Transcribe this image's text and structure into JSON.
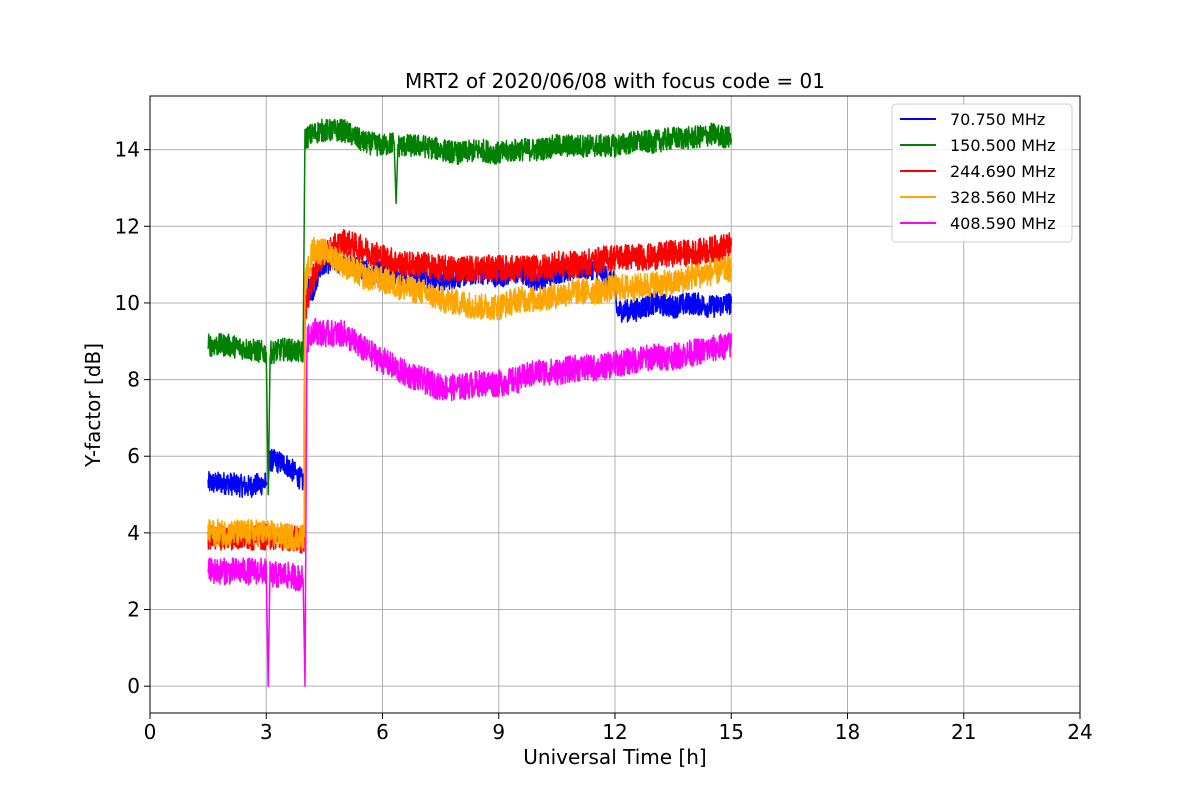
{
  "chart_data": {
    "type": "line",
    "title": "MRT2 of 2020/06/08 with focus code = 01",
    "xlabel": "Universal Time [h]",
    "ylabel": "Y-factor [dB]",
    "xlim": [
      0,
      24
    ],
    "ylim": [
      -0.7,
      15.4
    ],
    "xticks": [
      0,
      3,
      6,
      9,
      12,
      15,
      18,
      21,
      24
    ],
    "yticks": [
      0,
      2,
      4,
      6,
      8,
      10,
      12,
      14
    ],
    "grid": true,
    "legend_position": "top-right",
    "series": [
      {
        "name": " 70.750 MHz",
        "color": "#0000ff",
        "amp": 0.3,
        "points": [
          [
            1.5,
            5.3
          ],
          [
            2.0,
            5.3
          ],
          [
            2.5,
            5.2
          ],
          [
            3.0,
            5.3
          ],
          [
            3.05,
            5.3
          ],
          [
            3.1,
            5.9
          ],
          [
            3.5,
            5.8
          ],
          [
            3.8,
            5.5
          ],
          [
            3.98,
            5.3
          ],
          [
            4.0,
            10.5
          ],
          [
            4.2,
            10.3
          ],
          [
            4.4,
            11.0
          ],
          [
            4.8,
            11.1
          ],
          [
            5.2,
            11.0
          ],
          [
            5.6,
            10.8
          ],
          [
            6.0,
            10.8
          ],
          [
            6.5,
            10.6
          ],
          [
            7.0,
            10.7
          ],
          [
            7.5,
            10.6
          ],
          [
            8.0,
            10.7
          ],
          [
            8.5,
            10.8
          ],
          [
            9.0,
            10.7
          ],
          [
            9.5,
            10.8
          ],
          [
            10.0,
            10.6
          ],
          [
            10.5,
            10.8
          ],
          [
            11.0,
            10.9
          ],
          [
            11.5,
            10.9
          ],
          [
            12.0,
            10.5
          ],
          [
            12.05,
            9.8
          ],
          [
            12.5,
            9.8
          ],
          [
            13.0,
            10.0
          ],
          [
            13.5,
            9.9
          ],
          [
            14.0,
            10.0
          ],
          [
            14.5,
            9.9
          ],
          [
            15.0,
            10.0
          ]
        ]
      },
      {
        "name": "150.500 MHz",
        "color": "#008000",
        "amp": 0.3,
        "points": [
          [
            1.5,
            8.9
          ],
          [
            2.0,
            8.9
          ],
          [
            2.5,
            8.8
          ],
          [
            3.0,
            8.7
          ],
          [
            3.05,
            5.0
          ],
          [
            3.1,
            8.7
          ],
          [
            3.5,
            8.8
          ],
          [
            3.95,
            8.7
          ],
          [
            4.0,
            14.3
          ],
          [
            4.4,
            14.5
          ],
          [
            5.0,
            14.5
          ],
          [
            5.5,
            14.2
          ],
          [
            6.0,
            14.1
          ],
          [
            6.3,
            14.2
          ],
          [
            6.35,
            12.6
          ],
          [
            6.4,
            14.1
          ],
          [
            7.0,
            14.1
          ],
          [
            7.5,
            14.0
          ],
          [
            8.0,
            13.9
          ],
          [
            8.5,
            14.0
          ],
          [
            9.0,
            13.9
          ],
          [
            9.5,
            14.0
          ],
          [
            10.0,
            14.0
          ],
          [
            10.5,
            14.1
          ],
          [
            11.0,
            14.1
          ],
          [
            11.5,
            14.1
          ],
          [
            12.0,
            14.1
          ],
          [
            12.5,
            14.2
          ],
          [
            13.0,
            14.2
          ],
          [
            13.5,
            14.3
          ],
          [
            14.0,
            14.3
          ],
          [
            14.5,
            14.4
          ],
          [
            15.0,
            14.3
          ]
        ]
      },
      {
        "name": "244.690 MHz",
        "color": "#ff0000",
        "amp": 0.35,
        "points": [
          [
            1.5,
            3.9
          ],
          [
            2.0,
            3.9
          ],
          [
            2.5,
            3.9
          ],
          [
            3.0,
            3.9
          ],
          [
            3.5,
            3.9
          ],
          [
            3.98,
            3.8
          ],
          [
            4.0,
            9.8
          ],
          [
            4.2,
            10.7
          ],
          [
            4.5,
            11.3
          ],
          [
            5.0,
            11.6
          ],
          [
            5.5,
            11.4
          ],
          [
            6.0,
            11.2
          ],
          [
            6.5,
            11.0
          ],
          [
            7.0,
            11.0
          ],
          [
            7.5,
            10.9
          ],
          [
            8.0,
            10.9
          ],
          [
            8.5,
            10.9
          ],
          [
            9.0,
            10.9
          ],
          [
            9.5,
            10.9
          ],
          [
            10.0,
            10.9
          ],
          [
            10.5,
            11.0
          ],
          [
            11.0,
            11.0
          ],
          [
            11.5,
            11.1
          ],
          [
            12.0,
            11.2
          ],
          [
            12.5,
            11.2
          ],
          [
            13.0,
            11.2
          ],
          [
            13.5,
            11.3
          ],
          [
            14.0,
            11.3
          ],
          [
            14.5,
            11.4
          ],
          [
            15.0,
            11.5
          ]
        ]
      },
      {
        "name": "328.560 MHz",
        "color": "#ffa500",
        "amp": 0.35,
        "points": [
          [
            1.5,
            4.0
          ],
          [
            2.0,
            4.0
          ],
          [
            2.5,
            4.0
          ],
          [
            3.0,
            4.0
          ],
          [
            3.5,
            3.9
          ],
          [
            3.98,
            3.9
          ],
          [
            4.0,
            10.5
          ],
          [
            4.2,
            11.4
          ],
          [
            4.6,
            11.3
          ],
          [
            5.0,
            11.0
          ],
          [
            5.5,
            10.7
          ],
          [
            6.0,
            10.6
          ],
          [
            6.5,
            10.4
          ],
          [
            7.0,
            10.3
          ],
          [
            7.5,
            10.1
          ],
          [
            8.0,
            10.0
          ],
          [
            8.5,
            9.9
          ],
          [
            9.0,
            9.9
          ],
          [
            9.5,
            10.1
          ],
          [
            10.0,
            10.1
          ],
          [
            10.5,
            10.2
          ],
          [
            11.0,
            10.3
          ],
          [
            11.5,
            10.3
          ],
          [
            12.0,
            10.4
          ],
          [
            12.5,
            10.4
          ],
          [
            13.0,
            10.5
          ],
          [
            13.5,
            10.5
          ],
          [
            14.0,
            10.7
          ],
          [
            14.5,
            10.8
          ],
          [
            15.0,
            10.9
          ]
        ]
      },
      {
        "name": "408.590 MHz",
        "color": "#ff00ff",
        "amp": 0.35,
        "points": [
          [
            1.5,
            3.0
          ],
          [
            2.0,
            3.0
          ],
          [
            2.5,
            3.0
          ],
          [
            3.0,
            3.0
          ],
          [
            3.05,
            0.0
          ],
          [
            3.1,
            2.9
          ],
          [
            3.5,
            2.9
          ],
          [
            3.95,
            2.8
          ],
          [
            4.0,
            0.0
          ],
          [
            4.05,
            9.0
          ],
          [
            4.2,
            9.3
          ],
          [
            4.5,
            9.2
          ],
          [
            5.0,
            9.2
          ],
          [
            5.5,
            8.8
          ],
          [
            6.0,
            8.5
          ],
          [
            6.5,
            8.2
          ],
          [
            7.0,
            8.0
          ],
          [
            7.5,
            7.8
          ],
          [
            8.0,
            7.8
          ],
          [
            8.5,
            7.9
          ],
          [
            9.0,
            7.9
          ],
          [
            9.5,
            8.0
          ],
          [
            10.0,
            8.2
          ],
          [
            10.5,
            8.2
          ],
          [
            11.0,
            8.3
          ],
          [
            11.5,
            8.3
          ],
          [
            12.0,
            8.4
          ],
          [
            12.5,
            8.5
          ],
          [
            13.0,
            8.6
          ],
          [
            13.5,
            8.6
          ],
          [
            14.0,
            8.7
          ],
          [
            14.5,
            8.8
          ],
          [
            15.0,
            8.9
          ]
        ]
      }
    ]
  }
}
